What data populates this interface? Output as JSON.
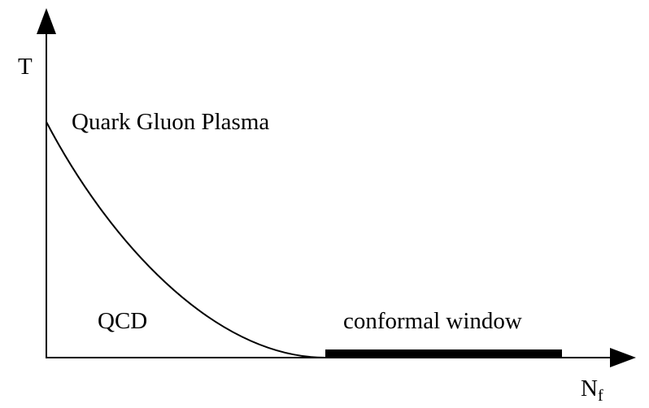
{
  "axes": {
    "y_label": "T",
    "x_label": "N",
    "x_label_subscript": "f"
  },
  "regions": {
    "upper": "Quark Gluon Plasma",
    "lower": "QCD",
    "window": "conformal window"
  }
}
